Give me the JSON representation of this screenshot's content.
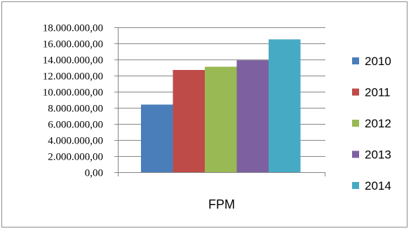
{
  "chart_data": {
    "type": "bar",
    "title": "",
    "xlabel": "",
    "ylabel": "",
    "categories": [
      "FPM"
    ],
    "series": [
      {
        "name": "2010",
        "values": [
          8400000
        ],
        "color": "#4a7ebb"
      },
      {
        "name": "2011",
        "values": [
          12700000
        ],
        "color": "#be4b48"
      },
      {
        "name": "2012",
        "values": [
          13100000
        ],
        "color": "#98b954"
      },
      {
        "name": "2013",
        "values": [
          13900000
        ],
        "color": "#7d60a0"
      },
      {
        "name": "2014",
        "values": [
          16500000
        ],
        "color": "#46aac5"
      }
    ],
    "ylim": [
      0,
      18000000
    ],
    "yticks": [
      0,
      2000000,
      4000000,
      6000000,
      8000000,
      10000000,
      12000000,
      14000000,
      16000000,
      18000000
    ],
    "ytick_labels": [
      "0,00",
      "2.000.000,00",
      "4.000.000,00",
      "6.000.000,00",
      "8.000.000,00",
      "10.000.000,00",
      "12.000.000,00",
      "14.000.000,00",
      "16.000.000,00",
      "18.000.000,00"
    ],
    "grid": true,
    "legend_position": "right"
  }
}
